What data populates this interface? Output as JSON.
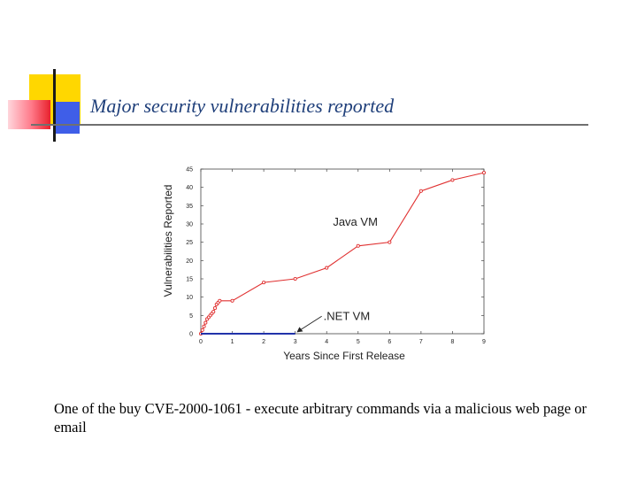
{
  "slide": {
    "title": "Major security vulnerabilities reported",
    "body_text": "One of the buy CVE-2000-1061 - execute arbitrary commands via a malicious web page or email",
    "colors": {
      "title": "#1f3f7a",
      "deco_yellow": "#ffd700",
      "deco_red": "#e8212c",
      "deco_blue": "#3f5ee8"
    }
  },
  "chart_data": {
    "type": "line",
    "xlabel": "Years Since First Release",
    "ylabel": "Vulnerabilities Reported",
    "xlim": [
      0,
      9
    ],
    "ylim": [
      0,
      45
    ],
    "xticks": [
      "0",
      "1",
      "2",
      "3",
      "4",
      "5",
      "6",
      "7",
      "8",
      "9"
    ],
    "yticks": [
      "0",
      "5",
      "10",
      "15",
      "20",
      "25",
      "30",
      "35",
      "40",
      "45"
    ],
    "grid": false,
    "series": [
      {
        "name": "Java VM",
        "color": "#e03030",
        "x": [
          0.0,
          0.05,
          0.1,
          0.15,
          0.2,
          0.25,
          0.3,
          0.35,
          0.4,
          0.45,
          0.5,
          0.55,
          0.6,
          1.0,
          2.0,
          3.0,
          4.0,
          5.0,
          6.0,
          7.0,
          8.0,
          9.0
        ],
        "values": [
          0,
          1,
          2,
          3,
          4,
          4.5,
          5,
          5.5,
          6,
          7,
          8,
          8.5,
          9,
          9,
          14,
          15,
          18,
          24,
          25,
          39,
          42,
          44
        ]
      },
      {
        "name": ".NET VM",
        "color": "#2233aa",
        "x": [
          0.0,
          3.0
        ],
        "values": [
          0,
          0
        ]
      }
    ],
    "annotations": [
      {
        "text": "Java VM",
        "x": 4.2,
        "y": 29.5
      },
      {
        "text": ".NET VM",
        "x": 3.9,
        "y": 3.8,
        "arrow_to": [
          3.05,
          0.4
        ]
      }
    ]
  }
}
